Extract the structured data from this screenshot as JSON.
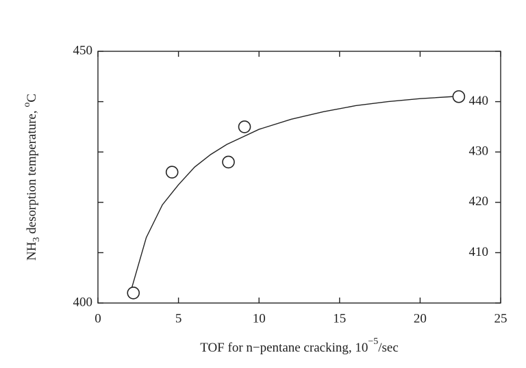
{
  "chart_data": {
    "type": "scatter",
    "xlabel": [
      "TOF for n−pentane cracking, 10",
      "−5",
      "/sec"
    ],
    "ylabel": [
      "NH",
      "3",
      " desorption temperature, ",
      "o",
      "C"
    ],
    "x": [
      2.2,
      4.6,
      8.1,
      9.1,
      22.4
    ],
    "values": [
      402,
      426,
      428,
      435,
      441
    ],
    "curve": {
      "x": [
        2.1,
        3,
        4,
        5,
        6,
        7,
        8,
        9,
        10,
        12,
        14,
        16,
        18,
        20,
        22
      ],
      "values": [
        403,
        413,
        419.5,
        423.5,
        427,
        429.5,
        431.5,
        433,
        434.5,
        436.5,
        438,
        439.2,
        440,
        440.6,
        441
      ]
    },
    "xlim": [
      0,
      25
    ],
    "xticks": [
      0,
      5,
      10,
      15,
      20,
      25
    ],
    "ylim": [
      400,
      450
    ],
    "yticks": [
      400,
      410,
      420,
      430,
      440,
      450
    ]
  }
}
